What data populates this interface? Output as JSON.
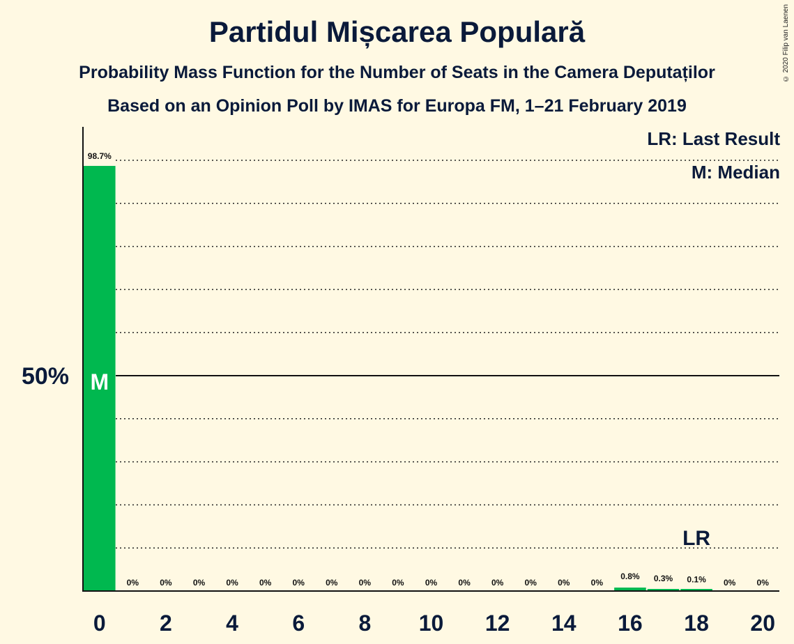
{
  "title": "Partidul Mișcarea Populară",
  "subtitle1": "Probability Mass Function for the Number of Seats in the Camera Deputaților",
  "subtitle2": "Based on an Opinion Poll by IMAS for Europa FM, 1–21 February 2019",
  "copyright": "© 2020 Filip van Laenen",
  "legend": {
    "last_result": "LR: Last Result",
    "median": "M: Median"
  },
  "colors": {
    "bar": "#00b84f",
    "background": "#fff9e3",
    "text": "#0a1a3a"
  },
  "chart_data": {
    "type": "bar",
    "title": "Partidul Mișcarea Populară",
    "xlabel": "",
    "ylabel": "",
    "categories": [
      0,
      1,
      2,
      3,
      4,
      5,
      6,
      7,
      8,
      9,
      10,
      11,
      12,
      13,
      14,
      15,
      16,
      17,
      18,
      19,
      20
    ],
    "values": [
      98.7,
      0,
      0,
      0,
      0,
      0,
      0,
      0,
      0,
      0,
      0,
      0,
      0,
      0,
      0,
      0,
      0.8,
      0.3,
      0.1,
      0,
      0
    ],
    "labels": [
      "98.7%",
      "0%",
      "0%",
      "0%",
      "0%",
      "0%",
      "0%",
      "0%",
      "0%",
      "0%",
      "0%",
      "0%",
      "0%",
      "0%",
      "0%",
      "0%",
      "0.8%",
      "0.3%",
      "0.1%",
      "0%",
      "0%"
    ],
    "x_tick_labels": [
      "0",
      "2",
      "4",
      "6",
      "8",
      "10",
      "12",
      "14",
      "16",
      "18",
      "20"
    ],
    "y_tick_label": "50%",
    "y_tick_value": 50,
    "ylim": [
      0,
      107.5
    ],
    "grid_step": 10,
    "median_seat": 0,
    "median_marker": "M",
    "last_result_seat": 18,
    "last_result_marker": "LR"
  }
}
